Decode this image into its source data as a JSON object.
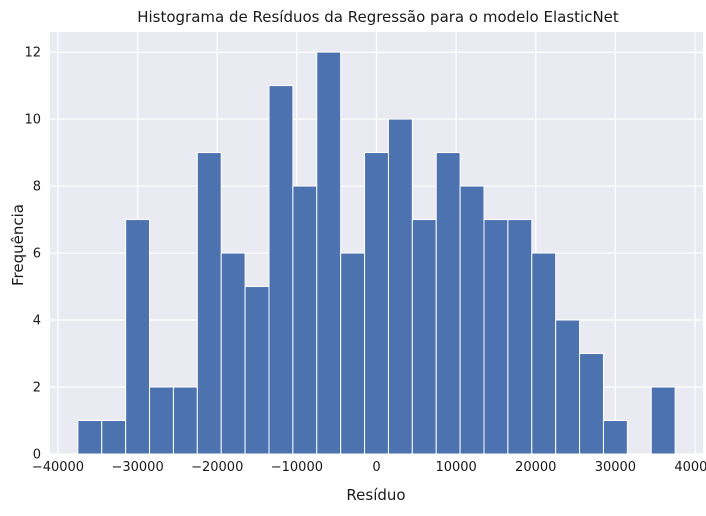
{
  "chart_data": {
    "type": "bar",
    "title": "Histograma de Resíduos da Regressão para o modelo ElasticNet",
    "xlabel": "Resíduo",
    "ylabel": "Frequência",
    "bin_start": -37500,
    "bin_width": 3000,
    "values": [
      1,
      1,
      7,
      2,
      2,
      9,
      6,
      5,
      11,
      8,
      12,
      6,
      9,
      10,
      7,
      9,
      8,
      7,
      7,
      6,
      4,
      3,
      1,
      0,
      2
    ],
    "xlim": [
      -41000,
      41000
    ],
    "ylim": [
      0,
      12.6
    ],
    "xticks": [
      -40000,
      -30000,
      -20000,
      -10000,
      0,
      10000,
      20000,
      30000,
      40000
    ],
    "xtick_labels": [
      "−40000",
      "−30000",
      "−20000",
      "−10000",
      "0",
      "10000",
      "20000",
      "30000",
      "40000"
    ],
    "yticks": [
      0,
      2,
      4,
      6,
      8,
      10,
      12
    ],
    "ytick_labels": [
      "0",
      "2",
      "4",
      "6",
      "8",
      "10",
      "12"
    ],
    "grid": true,
    "colors": {
      "bar": "#4c72b0",
      "background": "#eaeaf2",
      "grid": "#ffffff",
      "edge": "#ffffff"
    }
  }
}
